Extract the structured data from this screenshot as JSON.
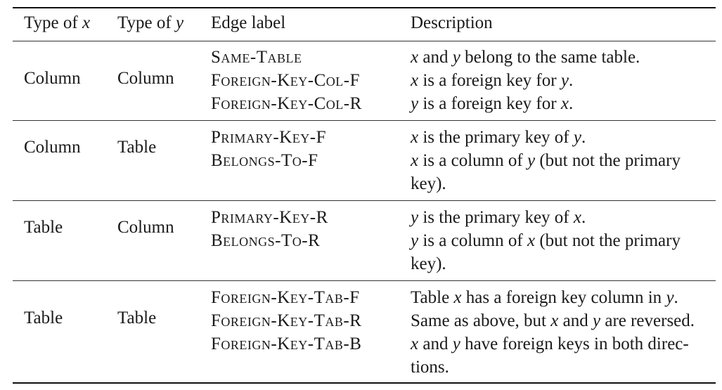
{
  "header": {
    "type_x": "Type of x",
    "type_y": "Type of y",
    "edge_label": "Edge label",
    "description": "Description"
  },
  "rows": [
    {
      "type_x": "Column",
      "type_y": "Column",
      "labels": [
        "Same-Table",
        "Foreign-Key-Col-F",
        "Foreign-Key-Col-R"
      ],
      "descriptions": [
        "x and y belong to the same table.",
        "x is a foreign key for y.",
        "y is a foreign key for x."
      ]
    },
    {
      "type_x": "Column",
      "type_y": "Table",
      "labels": [
        "Primary-Key-F",
        "Belongs-To-F"
      ],
      "descriptions": [
        "x is the primary key of y.",
        "x is a column of y (but not the primary",
        "key)."
      ]
    },
    {
      "type_x": "Table",
      "type_y": "Column",
      "labels": [
        "Primary-Key-R",
        "Belongs-To-R"
      ],
      "descriptions": [
        "y is the primary key of x.",
        "y is a column of x (but not the primary",
        "key)."
      ]
    },
    {
      "type_x": "Table",
      "type_y": "Table",
      "labels": [
        "Foreign-Key-Tab-F",
        "Foreign-Key-Tab-R",
        "Foreign-Key-Tab-B"
      ],
      "descriptions": [
        "Table x has a foreign key column in y.",
        "Same as above, but x and y are reversed.",
        "x and y have foreign keys in both direc-",
        "tions."
      ]
    }
  ]
}
